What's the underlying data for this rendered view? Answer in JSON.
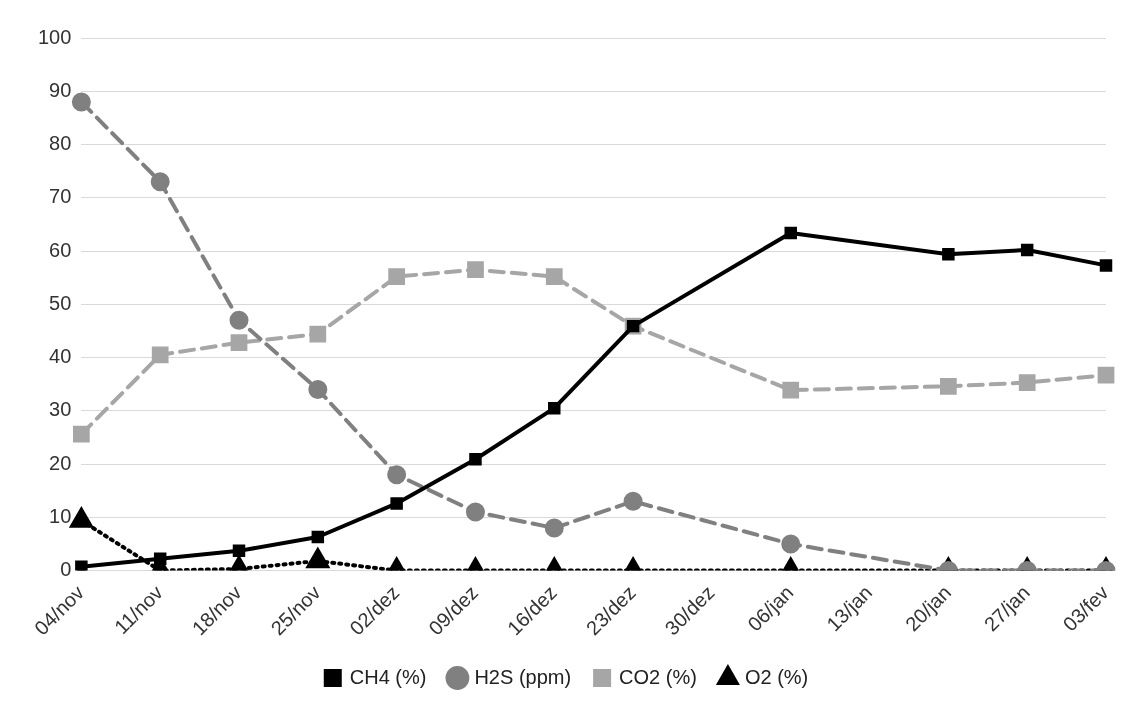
{
  "chart_data": {
    "type": "line",
    "categories": [
      "04/nov",
      "11/nov",
      "18/nov",
      "25/nov",
      "02/dez",
      "09/dez",
      "16/dez",
      "23/dez",
      "30/dez",
      "06/jan",
      "13/jan",
      "20/jan",
      "27/jan",
      "03/fev"
    ],
    "series": [
      {
        "name": "CH4 (%)",
        "color": "#000000",
        "marker": "square",
        "line_style": "solid",
        "values": [
          0.7,
          2.2,
          3.7,
          6.3,
          12.6,
          20.9,
          30.5,
          45.9,
          null,
          63.4,
          null,
          59.4,
          60.2,
          57.3
        ]
      },
      {
        "name": "H2S (ppm)",
        "color": "#808080",
        "marker": "circle",
        "line_style": "dashed",
        "values": [
          88,
          73,
          47,
          34,
          18,
          11,
          8,
          13,
          null,
          5,
          null,
          0,
          0,
          0
        ]
      },
      {
        "name": "CO2 (%)",
        "color": "#a6a6a6",
        "marker": "square",
        "line_style": "dashed",
        "values": [
          25.6,
          40.5,
          42.8,
          44.4,
          55.2,
          56.5,
          55.2,
          45.9,
          null,
          33.9,
          null,
          34.6,
          35.3,
          36.7
        ]
      },
      {
        "name": "O2 (%)",
        "color": "#000000",
        "marker": "triangle",
        "line_style": "dotted",
        "values": [
          9.4,
          0,
          0.3,
          1.8,
          0,
          0,
          0,
          0,
          null,
          0,
          null,
          0,
          0,
          0
        ]
      }
    ],
    "ylim": [
      0,
      100
    ],
    "yticks": [
      0,
      10,
      20,
      30,
      40,
      50,
      60,
      70,
      80,
      90,
      100
    ],
    "grid": "y",
    "legend": "bottom"
  }
}
